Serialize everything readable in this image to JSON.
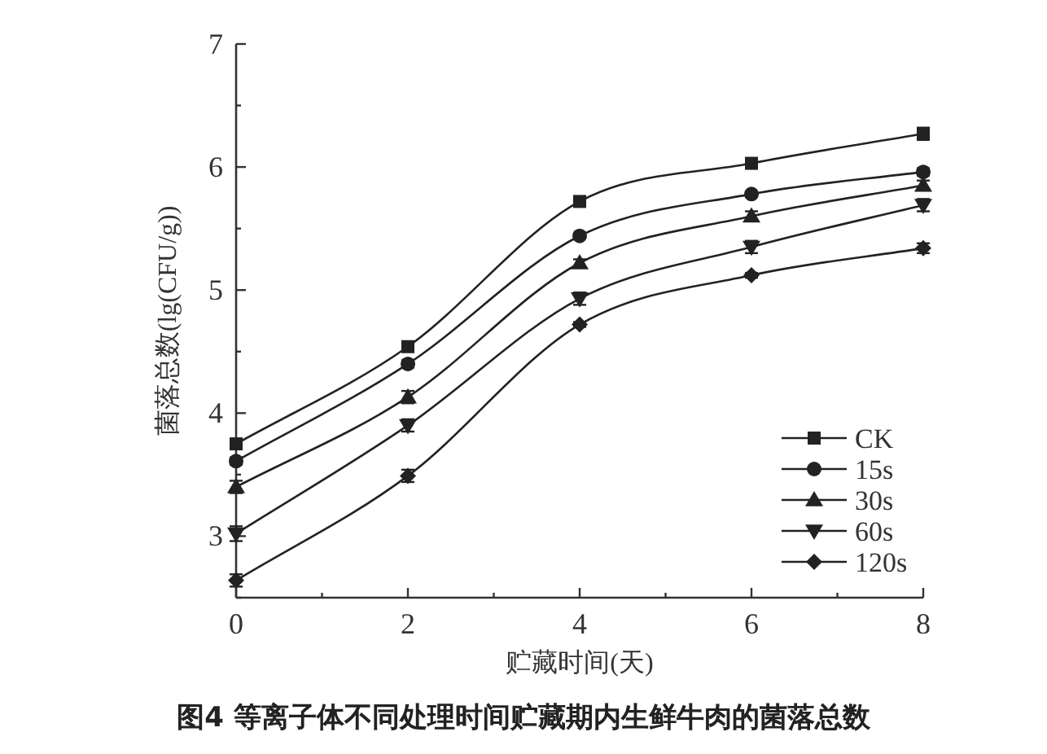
{
  "chart_data": {
    "type": "line",
    "xlabel": "贮藏时间(天)",
    "ylabel": "菌落总数(lg(CFU/g))",
    "annotations": [
      "图4 等离子体不同处理时间贮藏期内生鲜牛肉的菌落总数"
    ],
    "x": [
      0,
      2,
      4,
      6,
      8
    ],
    "xlim": [
      0,
      8
    ],
    "xticks": [
      0,
      {
        "value": 1,
        "label": null
      },
      2,
      {
        "value": 3,
        "label": null
      },
      4,
      {
        "value": 5,
        "label": null
      },
      6,
      {
        "value": 7,
        "label": null
      },
      8
    ],
    "ylim": [
      2.5,
      7
    ],
    "yticks": [
      {
        "value": 2.5,
        "label": null
      },
      3,
      {
        "value": 3.5,
        "label": null
      },
      4,
      {
        "value": 4.5,
        "label": null
      },
      5,
      {
        "value": 5.5,
        "label": null
      },
      6,
      {
        "value": 6.5,
        "label": null
      },
      7
    ],
    "grid": false,
    "legend": "bottom right",
    "line_style": "solid",
    "series": [
      {
        "name": "CK",
        "color": "#222222",
        "marker": "square",
        "values": [
          3.75,
          4.54,
          5.72,
          6.03,
          6.27
        ],
        "errors": [
          0.03,
          0.03,
          0.02,
          0.02,
          0.05
        ]
      },
      {
        "name": "15s",
        "color": "#222222",
        "marker": "circle",
        "values": [
          3.61,
          4.4,
          5.44,
          5.78,
          5.96
        ],
        "errors": [
          0.03,
          0.03,
          0.02,
          0.02,
          0.03
        ]
      },
      {
        "name": "30s",
        "color": "#222222",
        "marker": "triangle",
        "values": [
          3.4,
          4.13,
          5.22,
          5.6,
          5.85
        ],
        "errors": [
          0.05,
          0.05,
          0.03,
          0.04,
          0.04
        ]
      },
      {
        "name": "60s",
        "color": "#222222",
        "marker": "triangle-down",
        "values": [
          3.02,
          3.9,
          4.93,
          5.35,
          5.69
        ],
        "errors": [
          0.06,
          0.05,
          0.05,
          0.05,
          0.05
        ]
      },
      {
        "name": "120s",
        "color": "#222222",
        "marker": "diamond",
        "values": [
          2.64,
          3.49,
          4.72,
          5.12,
          5.34
        ],
        "errors": [
          0.05,
          0.05,
          0.02,
          0.02,
          0.04
        ]
      }
    ]
  }
}
